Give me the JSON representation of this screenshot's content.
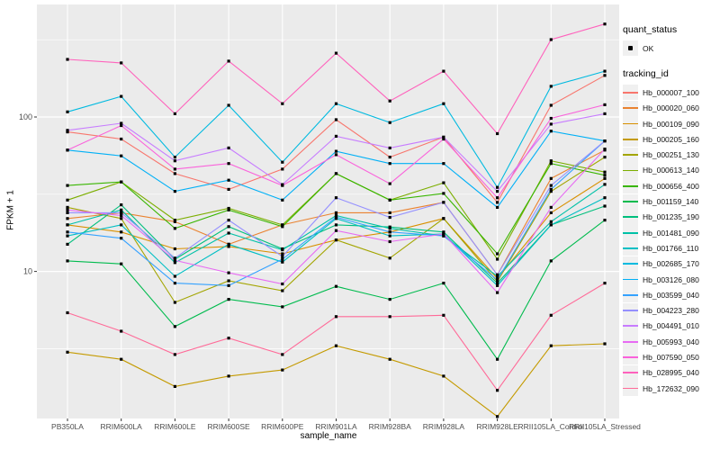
{
  "axes": {
    "x_title": "sample_name",
    "y_title": "FPKM + 1"
  },
  "legend": {
    "quant_title": "quant_status",
    "quant_items": [
      {
        "label": "OK",
        "marker": "black-square-point"
      }
    ],
    "tracking_title": "tracking_id"
  },
  "panel": {
    "bg": "#EBEBEB",
    "grid": "#FFFFFF",
    "tick_color": "#333333",
    "tick_label_color": "#4D4D4D"
  },
  "chart_data": {
    "type": "line",
    "title": "",
    "xlabel": "sample_name",
    "ylabel": "FPKM + 1",
    "y_scale": "log10",
    "ylim": [
      1.1,
      500
    ],
    "y_ticks": [
      10,
      100
    ],
    "y_minor_ticks": [
      3.162,
      31.62,
      316.2
    ],
    "grid": "on",
    "legend_position": "right",
    "point_color": "#000000",
    "categories": [
      "PB350LA",
      "RRIM600LA",
      "RRIM600LE",
      "RRIM600SE",
      "RRIM600PE",
      "RRIM901LA",
      "RRIM928BA",
      "RRIM928LA",
      "RRIM928LE",
      "RRII105LA_Control",
      "RRII105LA_Stressed"
    ],
    "series": [
      {
        "name": "Hb_000007_100",
        "color": "#F8766D",
        "values": [
          80,
          72,
          43,
          34,
          46,
          96,
          55,
          74,
          28,
          119,
          186
        ]
      },
      {
        "name": "Hb_000020_060",
        "color": "#EA8331",
        "values": [
          22,
          24,
          21,
          15,
          20,
          24,
          24,
          28,
          9.5,
          40,
          61
        ]
      },
      {
        "name": "Hb_000109_090",
        "color": "#D89000",
        "values": [
          20,
          18,
          14,
          14.5,
          13,
          16,
          18,
          22,
          9,
          24,
          40
        ]
      },
      {
        "name": "Hb_000205_160",
        "color": "#C49A00",
        "values": [
          3.0,
          2.7,
          1.8,
          2.1,
          2.3,
          3.3,
          2.7,
          2.1,
          1.15,
          3.3,
          3.4
        ]
      },
      {
        "name": "Hb_000251_130",
        "color": "#A3A500",
        "values": [
          26,
          22,
          6.3,
          8.7,
          7.5,
          16,
          12.2,
          22,
          8.6,
          33,
          55
        ]
      },
      {
        "name": "Hb_000613_140",
        "color": "#7CAE00",
        "values": [
          29,
          38,
          21.5,
          25.6,
          20,
          43,
          29,
          37.5,
          12,
          52,
          44
        ]
      },
      {
        "name": "Hb_000656_400",
        "color": "#39B600",
        "values": [
          36,
          38,
          19,
          25,
          19.5,
          43,
          29,
          32,
          13,
          50,
          42
        ]
      },
      {
        "name": "Hb_001159_140",
        "color": "#00BB4E",
        "values": [
          11.7,
          11.2,
          4.4,
          6.6,
          5.9,
          8,
          6.6,
          8.4,
          2.7,
          11.7,
          21.5
        ]
      },
      {
        "name": "Hb_001235_190",
        "color": "#00BF7D",
        "values": [
          15,
          27,
          12,
          19.5,
          14,
          20,
          19.4,
          18,
          8.4,
          20,
          26.5
        ]
      },
      {
        "name": "Hb_001481_090",
        "color": "#00C1A7",
        "values": [
          20,
          25,
          11.4,
          17.7,
          13.8,
          23,
          19,
          17,
          9.3,
          21,
          36.6
        ]
      },
      {
        "name": "Hb_001766_110",
        "color": "#00BFC4",
        "values": [
          17,
          20,
          9.3,
          15,
          11.5,
          22,
          17,
          17.5,
          8.1,
          20,
          30
        ]
      },
      {
        "name": "Hb_002685_170",
        "color": "#00BAE0",
        "values": [
          108,
          136,
          55,
          119,
          51,
          122,
          92,
          122,
          35,
          158,
          198
        ]
      },
      {
        "name": "Hb_003126_080",
        "color": "#00B0F6",
        "values": [
          61,
          56,
          33,
          39,
          29,
          60,
          50,
          50,
          26,
          81,
          70
        ]
      },
      {
        "name": "Hb_003599_040",
        "color": "#35A2FF",
        "values": [
          18,
          16.4,
          8.4,
          8.1,
          12,
          22.5,
          18,
          17,
          8.8,
          34,
          70
        ]
      },
      {
        "name": "Hb_004223_280",
        "color": "#9590FF",
        "values": [
          24,
          24,
          12.2,
          21.5,
          12.5,
          30,
          22.4,
          28,
          9.5,
          36,
          70
        ]
      },
      {
        "name": "Hb_004491_010",
        "color": "#C77CFF",
        "values": [
          82,
          91,
          52,
          63,
          36.5,
          75,
          63,
          74,
          33,
          90,
          105
        ]
      },
      {
        "name": "Hb_005993_040",
        "color": "#E76BF3",
        "values": [
          25,
          23,
          11.8,
          9.8,
          8.3,
          18.4,
          15.6,
          17.5,
          7.3,
          26,
          62
        ]
      },
      {
        "name": "Hb_007590_050",
        "color": "#FA62DB",
        "values": [
          61,
          88,
          46,
          50,
          36,
          57,
          37,
          72,
          30,
          98,
          120
        ]
      },
      {
        "name": "Hb_028995_040",
        "color": "#FF62BC",
        "values": [
          236,
          224,
          105,
          230,
          122,
          259,
          127,
          198,
          78,
          317,
          400
        ]
      },
      {
        "name": "Hb_172632_090",
        "color": "#FF6A98",
        "values": [
          5.4,
          4.1,
          2.9,
          3.7,
          2.9,
          5.1,
          5.1,
          5.2,
          1.7,
          5.2,
          8.4
        ]
      }
    ]
  }
}
